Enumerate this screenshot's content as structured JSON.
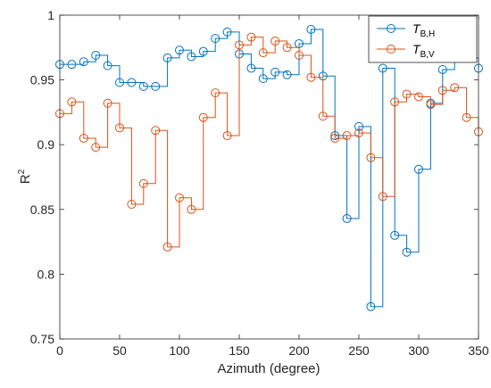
{
  "chart_data": {
    "type": "line",
    "step": true,
    "title": "",
    "xlabel": "Azimuth (degree)",
    "ylabel": "R",
    "ylabel_sup": "2",
    "xlim": [
      0,
      350
    ],
    "ylim": [
      0.75,
      1
    ],
    "xticks": [
      0,
      50,
      100,
      150,
      200,
      250,
      300,
      350
    ],
    "yticks": [
      0.75,
      0.8,
      0.85,
      0.9,
      0.95,
      1
    ],
    "xtick_labels": [
      "0",
      "50",
      "100",
      "150",
      "200",
      "250",
      "300",
      "350"
    ],
    "ytick_labels": [
      "0.75",
      "0.8",
      "0.85",
      "0.9",
      "0.95",
      "1"
    ],
    "grid": false,
    "legend_position": "top-right",
    "x": [
      0,
      10,
      20,
      30,
      40,
      50,
      60,
      70,
      80,
      90,
      100,
      110,
      120,
      130,
      140,
      150,
      160,
      170,
      180,
      190,
      200,
      210,
      220,
      230,
      240,
      250,
      260,
      270,
      280,
      290,
      300,
      310,
      320,
      330,
      340,
      350
    ],
    "series": [
      {
        "name_main": "T",
        "name_sub": "B,H",
        "color": "#0072BD",
        "values": [
          0.962,
          0.962,
          0.964,
          0.969,
          0.961,
          0.948,
          0.948,
          0.945,
          0.945,
          0.967,
          0.973,
          0.968,
          0.972,
          0.982,
          0.987,
          0.97,
          0.959,
          0.951,
          0.956,
          0.954,
          0.978,
          0.989,
          0.953,
          0.907,
          0.843,
          0.914,
          0.775,
          0.959,
          0.83,
          0.817,
          0.881,
          0.932,
          0.958,
          0.969,
          0.967,
          0.959
        ]
      },
      {
        "name_main": "T",
        "name_sub": "B,V",
        "color": "#D95319",
        "values": [
          0.924,
          0.933,
          0.905,
          0.898,
          0.932,
          0.913,
          0.854,
          0.87,
          0.911,
          0.821,
          0.859,
          0.85,
          0.921,
          0.94,
          0.907,
          0.977,
          0.983,
          0.971,
          0.98,
          0.975,
          0.969,
          0.952,
          0.922,
          0.905,
          0.907,
          0.909,
          0.89,
          0.86,
          0.933,
          0.939,
          0.937,
          0.931,
          0.942,
          0.944,
          0.921,
          0.91
        ]
      }
    ]
  }
}
